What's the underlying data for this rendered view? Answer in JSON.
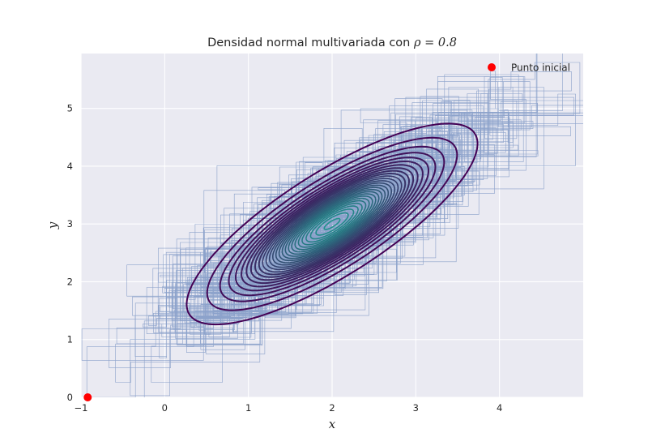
{
  "chart_data": {
    "type": "line",
    "title_prefix": "Densidad normal multivariada con ",
    "title_math": "ρ = 0.8",
    "xlabel": "x",
    "ylabel": "y",
    "xlim": [
      -1,
      5
    ],
    "ylim": [
      0,
      5.95
    ],
    "xticks": [
      "−1",
      "0",
      "1",
      "2",
      "3",
      "4"
    ],
    "xtick_values": [
      -1,
      0,
      1,
      2,
      3,
      4
    ],
    "yticks": [
      "0",
      "1",
      "2",
      "3",
      "4",
      "5"
    ],
    "ytick_values": [
      0,
      1,
      2,
      3,
      4,
      5
    ],
    "grid": true,
    "legend_position": "top-right",
    "legend": [
      {
        "label": "Punto inicial",
        "marker": "circle",
        "color": "#ff0000"
      }
    ],
    "start_point": {
      "x": -0.92,
      "y": 0.0
    },
    "gibbs_first_steps": [
      {
        "x": -0.92,
        "y": 0.0
      },
      {
        "x": -0.35,
        "y": 0.0
      },
      {
        "x": -0.35,
        "y": 1.63
      },
      {
        "x": 0.3,
        "y": 1.63
      },
      {
        "x": 0.3,
        "y": 1.3
      },
      {
        "x": 0.75,
        "y": 1.3
      },
      {
        "x": 0.75,
        "y": 2.05
      }
    ],
    "distribution": {
      "mean": [
        2,
        3
      ],
      "sd": [
        1,
        1
      ],
      "rho": 0.8
    },
    "contour_levels": [
      0.004,
      0.012,
      0.022,
      0.032,
      0.042,
      0.052,
      0.062,
      0.072,
      0.082,
      0.092,
      0.102,
      0.112,
      0.122,
      0.132,
      0.142,
      0.152,
      0.162,
      0.172,
      0.182,
      0.192,
      0.202,
      0.212,
      0.222,
      0.232,
      0.242,
      0.252,
      0.262
    ],
    "colors": {
      "background": "#eaeaf2",
      "grid": "#ffffff",
      "chain": "#4c72b0",
      "contour_low": "#440154",
      "contour_high": "#21918c",
      "start": "#ff0000"
    }
  }
}
